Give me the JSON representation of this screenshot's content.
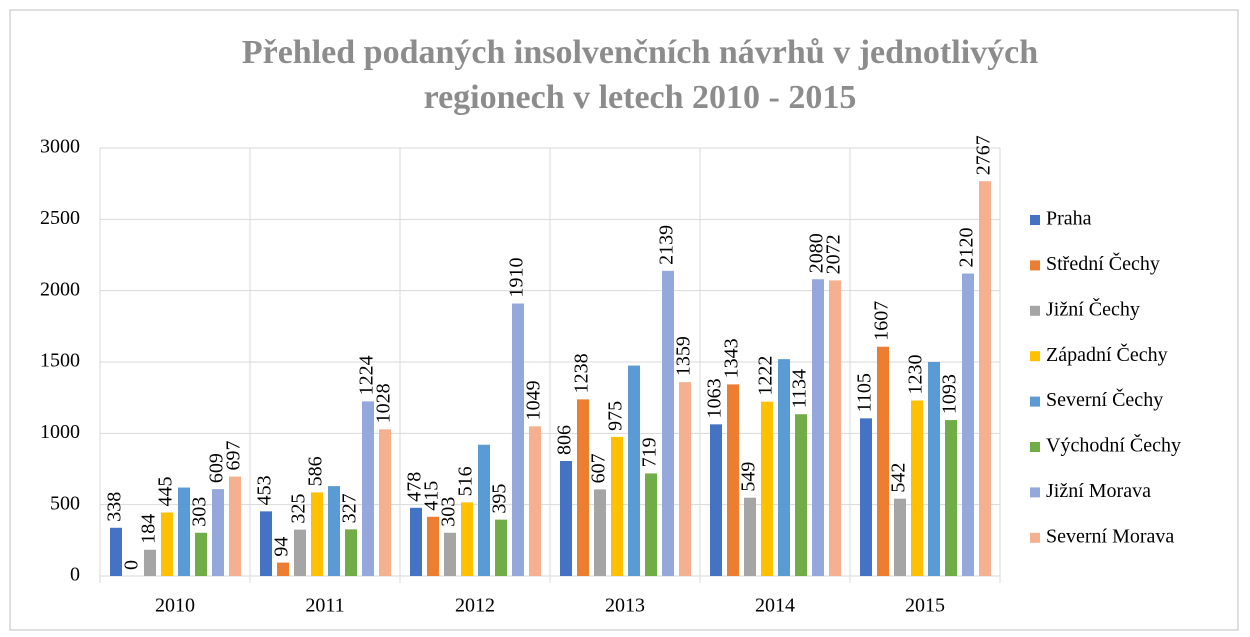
{
  "chart_data": {
    "type": "bar",
    "title": [
      "Přehled podaných insolvenčních návrhů v jednotlivých",
      "regionech v letech 2010 - 2015"
    ],
    "categories": [
      "2010",
      "2011",
      "2012",
      "2013",
      "2014",
      "2015"
    ],
    "series": [
      {
        "name": "Praha",
        "color": "#4472c4",
        "values": [
          338,
          453,
          478,
          806,
          1063,
          1105
        ]
      },
      {
        "name": "Střední Čechy",
        "color": "#ed7d31",
        "values": [
          0,
          94,
          415,
          1238,
          1343,
          1607
        ]
      },
      {
        "name": "Jižní Čechy",
        "color": "#a5a5a5",
        "values": [
          184,
          325,
          303,
          607,
          549,
          542
        ]
      },
      {
        "name": "Západní Čechy",
        "color": "#ffc000",
        "values": [
          445,
          586,
          516,
          975,
          1222,
          1230
        ]
      },
      {
        "name": "Severní Čechy",
        "color": "#5b9bd5",
        "values": [
          620,
          630,
          920,
          1475,
          1520,
          1500
        ],
        "data_labels": false
      },
      {
        "name": "Východní Čechy",
        "color": "#70ad47",
        "values": [
          303,
          327,
          395,
          719,
          1134,
          1093
        ]
      },
      {
        "name": "Jižní Morava",
        "color": "#95a8dc",
        "values": [
          609,
          1224,
          1910,
          2139,
          2080,
          2120
        ]
      },
      {
        "name": "Severní Morava",
        "color": "#f4b08f",
        "values": [
          697,
          1028,
          1049,
          1359,
          2072,
          2767
        ]
      }
    ],
    "ylim": [
      0,
      3000
    ],
    "yticks": [
      0,
      500,
      1000,
      1500,
      2000,
      2500,
      3000
    ],
    "grid": true,
    "data_labels": true,
    "legend": "right"
  }
}
